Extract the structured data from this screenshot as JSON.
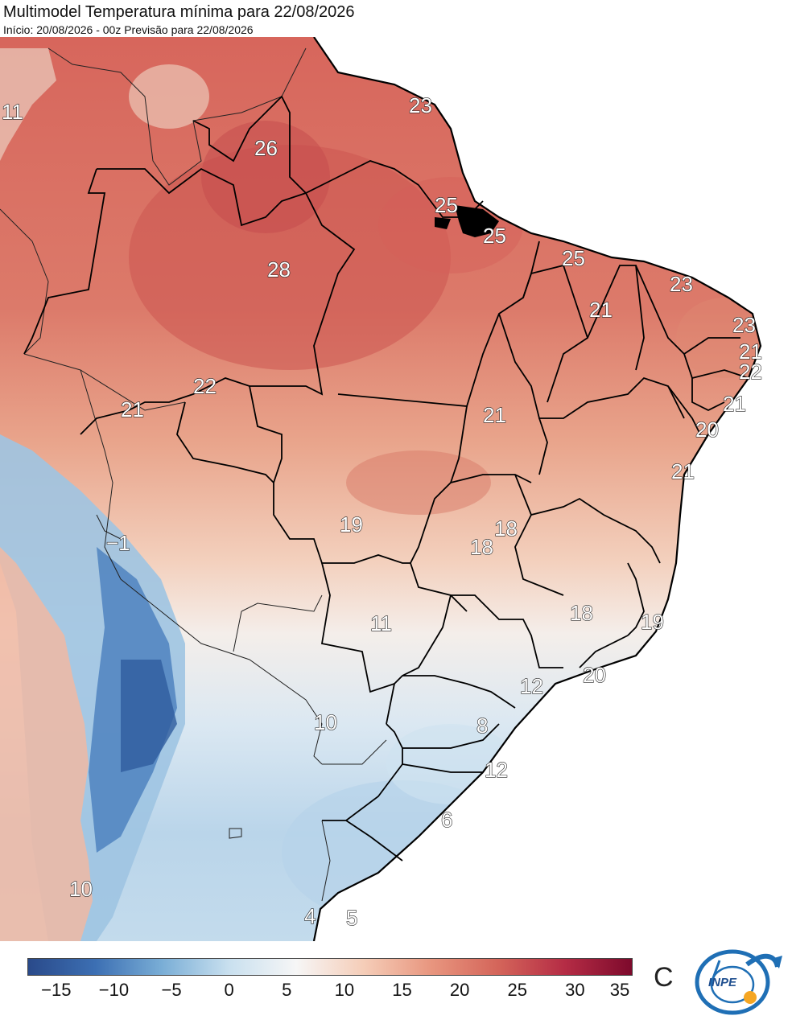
{
  "header": {
    "title": "Multimodel Temperatura mínima para 22/08/2026",
    "subtitle": "Início: 20/08/2026 - 00z  Previsão para 22/08/2026"
  },
  "legend": {
    "unit": "C",
    "ticks": [
      "−15",
      "−10",
      "−5",
      "0",
      "5",
      "10",
      "15",
      "20",
      "25",
      "30",
      "35"
    ],
    "range": [
      -17.5,
      35
    ],
    "colors": [
      "#2a4a8a",
      "#3c6fb3",
      "#7aaed6",
      "#c9e0ef",
      "#f6f6f6",
      "#f5cdb8",
      "#e8967f",
      "#d4655a",
      "#b52c45",
      "#7d0a2c"
    ]
  },
  "map": {
    "labels": [
      {
        "text": "11",
        "value": 11
      },
      {
        "text": "26",
        "value": 26
      },
      {
        "text": "23",
        "value": 23
      },
      {
        "text": "25",
        "value": 25
      },
      {
        "text": "25",
        "value": 25
      },
      {
        "text": "28",
        "value": 28
      },
      {
        "text": "25",
        "value": 25
      },
      {
        "text": "23",
        "value": 23
      },
      {
        "text": "21",
        "value": 21
      },
      {
        "text": "23",
        "value": 23
      },
      {
        "text": "21",
        "value": 21
      },
      {
        "text": "22",
        "value": 22
      },
      {
        "text": "22",
        "value": 22
      },
      {
        "text": "21",
        "value": 21
      },
      {
        "text": "21",
        "value": 21
      },
      {
        "text": "21",
        "value": 21
      },
      {
        "text": "20",
        "value": 20
      },
      {
        "text": "21",
        "value": 21
      },
      {
        "text": "−1",
        "value": -1
      },
      {
        "text": "19",
        "value": 19
      },
      {
        "text": "18",
        "value": 18
      },
      {
        "text": "18",
        "value": 18
      },
      {
        "text": "18",
        "value": 18
      },
      {
        "text": "11",
        "value": 11
      },
      {
        "text": "19",
        "value": 19
      },
      {
        "text": "20",
        "value": 20
      },
      {
        "text": "12",
        "value": 12
      },
      {
        "text": "10",
        "value": 10
      },
      {
        "text": "8",
        "value": 8
      },
      {
        "text": "12",
        "value": 12
      },
      {
        "text": "6",
        "value": 6
      },
      {
        "text": "10",
        "value": 10
      },
      {
        "text": "4",
        "value": 4
      },
      {
        "text": "5",
        "value": 5
      }
    ]
  },
  "logo": {
    "text": "INPE"
  }
}
